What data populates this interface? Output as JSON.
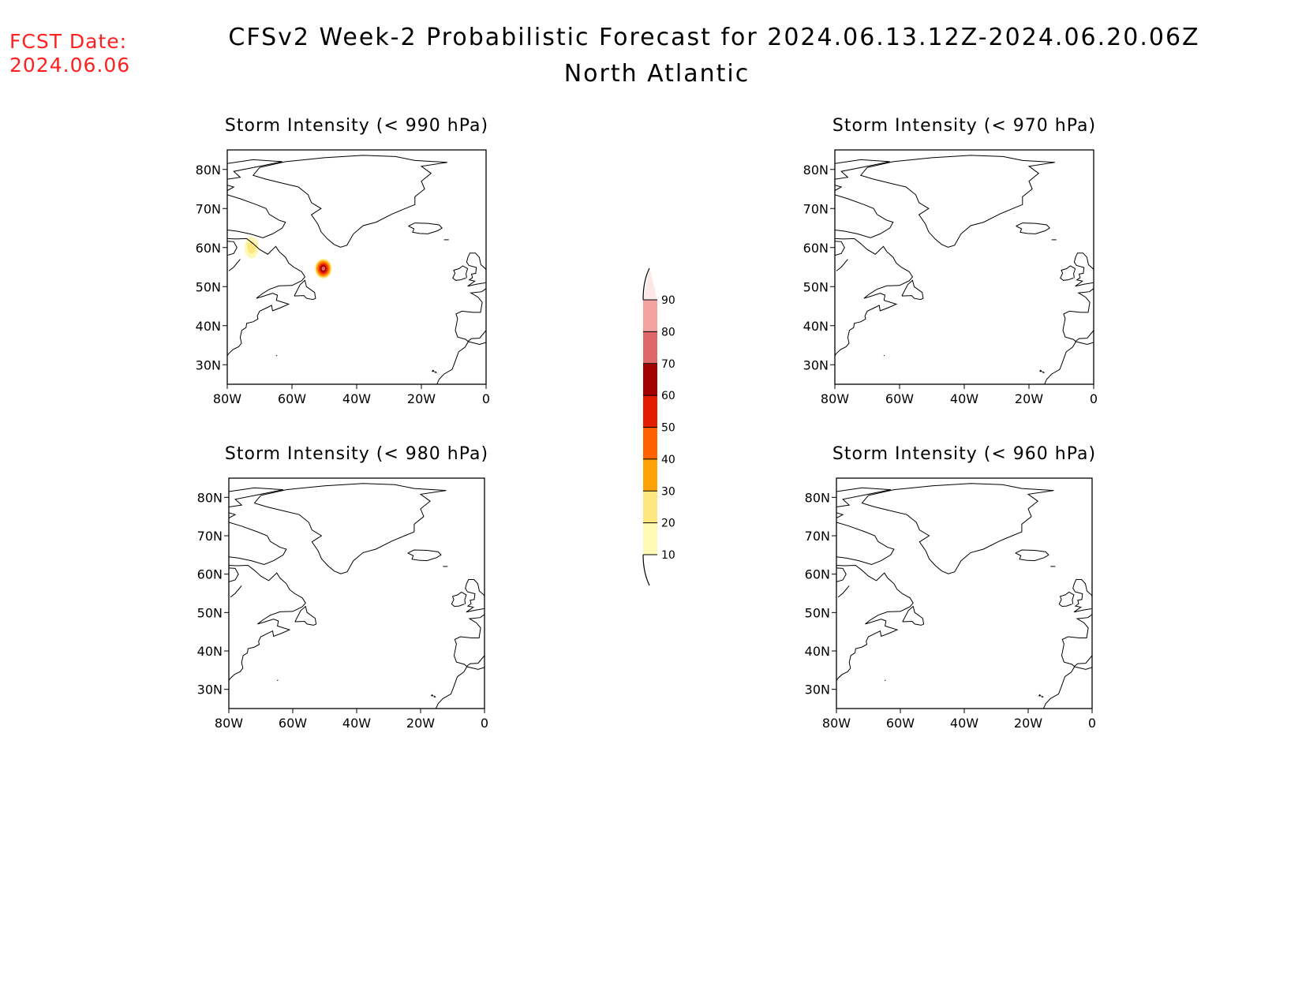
{
  "header": {
    "fcst_date_label": "FCST Date:",
    "fcst_date_value": "2024.06.06",
    "title": "CFSv2 Week-2 Probabilistic Forecast for 2024.06.13.12Z-2024.06.20.06Z",
    "subtitle": "North Atlantic"
  },
  "map_extent": {
    "lon": [
      -80,
      0
    ],
    "lat": [
      25,
      85
    ]
  },
  "axes": {
    "lat_ticks": [
      30,
      40,
      50,
      60,
      70,
      80
    ],
    "lat_labels": [
      "30N",
      "40N",
      "50N",
      "60N",
      "70N",
      "80N"
    ],
    "lon_ticks": [
      -80,
      -60,
      -40,
      -20,
      0
    ],
    "lon_labels": [
      "80W",
      "60W",
      "40W",
      "20W",
      "0"
    ]
  },
  "panels": [
    {
      "id": "p990",
      "title": "Storm Intensity (< 990 hPa)",
      "blobs": [
        {
          "lon": -72.5,
          "lat": 60.0,
          "rlon": 2.2,
          "rlat": 2.8,
          "levels": [
            10,
            20
          ]
        },
        {
          "lon": -50.3,
          "lat": 54.6,
          "rlon": 2.6,
          "rlat": 2.5,
          "levels": [
            20,
            30,
            40,
            50,
            60,
            70
          ]
        }
      ]
    },
    {
      "id": "p970",
      "title": "Storm Intensity (< 970 hPa)",
      "blobs": []
    },
    {
      "id": "p980",
      "title": "Storm Intensity (< 980 hPa)",
      "blobs": []
    },
    {
      "id": "p960",
      "title": "Storm Intensity (< 960 hPa)",
      "blobs": []
    }
  ],
  "colorbar": {
    "labels": [
      "10",
      "20",
      "30",
      "40",
      "50",
      "60",
      "70",
      "80",
      "90"
    ],
    "colors": [
      "#fff9b6",
      "#ffe77f",
      "#ffa20a",
      "#ff6000",
      "#e21e00",
      "#a50000",
      "#df6767",
      "#f4a3a3",
      "#fde8e8"
    ]
  }
}
